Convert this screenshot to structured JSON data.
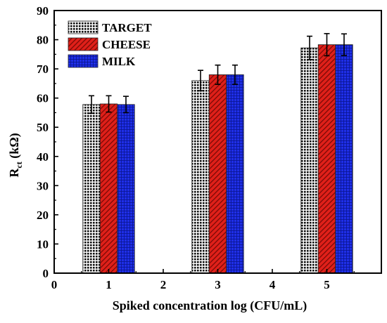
{
  "chart_data": {
    "type": "bar",
    "xlabel": "Spiked concentration log (CFU/mL)",
    "ylabel": "R",
    "ylabel_sub": "ct",
    "ylabel_unit": " (kΩ)",
    "xlim": [
      0,
      6
    ],
    "ylim": [
      0,
      90
    ],
    "xticks": [
      0,
      1,
      2,
      3,
      4,
      5
    ],
    "yticks": [
      0,
      10,
      20,
      30,
      40,
      50,
      60,
      70,
      80,
      90
    ],
    "categories": [
      1,
      3,
      5
    ],
    "series": [
      {
        "name": "TARGET",
        "color": "#111111",
        "pattern": "dots",
        "values": [
          57.8,
          66.0,
          77.2
        ],
        "errors": [
          3.0,
          3.5,
          4.0
        ]
      },
      {
        "name": "CHEESE",
        "color": "#e0201a",
        "pattern": "hatch",
        "values": [
          58.0,
          68.0,
          78.3
        ],
        "errors": [
          2.8,
          3.3,
          3.8
        ]
      },
      {
        "name": "MILK",
        "color": "#1f2fe8",
        "pattern": "grid",
        "values": [
          57.8,
          68.0,
          78.3
        ],
        "errors": [
          2.8,
          3.3,
          3.7
        ]
      }
    ],
    "legend_position": "top-left",
    "grid": false
  }
}
